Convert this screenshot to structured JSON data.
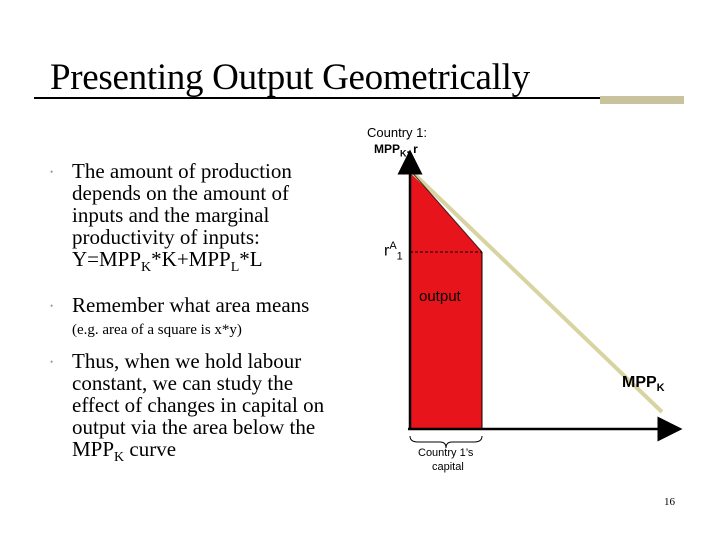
{
  "slide": {
    "title": "Presenting Output Geometrically",
    "page_number": "16"
  },
  "bullets": [
    {
      "lines": [
        "The amount of production",
        "depends on the amount of",
        "inputs and the marginal",
        "productivity of inputs:"
      ],
      "formula": {
        "a": "Y=MPP",
        "a_sub": "K",
        "b": "*K+MPP",
        "b_sub": "L",
        "c": "*L"
      }
    },
    {
      "lines": [
        "Remember what area means"
      ]
    },
    {
      "lines": [
        "Thus, when we hold labour",
        "constant, we can study the",
        "effect of changes in capital on",
        "output via the area below the"
      ],
      "last": {
        "a": "MPP",
        "a_sub": "K",
        "b": " curve"
      }
    }
  ],
  "note": "(e.g. area of a square is x*y)",
  "diagram": {
    "y_axis_label_line1": "Country 1:",
    "y_axis_label_line2": {
      "a": "MPP",
      "a_sub": "K",
      "b": ", r"
    },
    "rate_label": {
      "a": "r",
      "a_sup": "A",
      "a_sub": "1"
    },
    "area_label": "output",
    "curve_label": {
      "a": "MPP",
      "a_sub": "K"
    },
    "x_axis_label_line1": "Country 1’s",
    "x_axis_label_line2": "capital",
    "colors": {
      "area": "#e8141b",
      "curve": "#d8d3a0",
      "axis": "#000000",
      "title_rule": "#c8c39c"
    }
  }
}
